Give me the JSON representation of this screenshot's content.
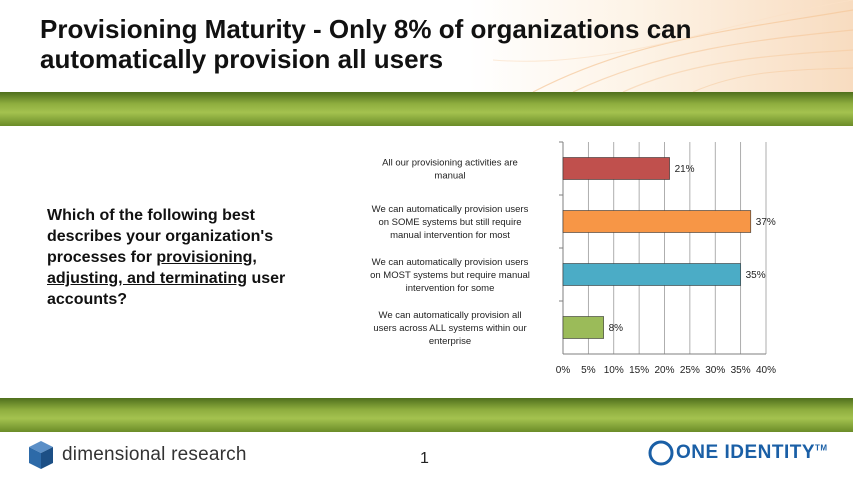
{
  "slide": {
    "title": "Provisioning Maturity - Only 8% of organizations can automatically provision all users",
    "question_parts": [
      "Which of the following  best describes your organization's processes for ",
      "provisioning, adjusting, and terminating",
      " user accounts?"
    ],
    "page_number": "1"
  },
  "footer": {
    "left_brand": "dimensional research",
    "right_brand_one": "ONE",
    "right_brand_identity": "IDENTITY",
    "right_brand_tm": "TM"
  },
  "colors": {
    "band": "#8fae3f",
    "bar_red": "#c0504d",
    "bar_orange": "#f79646",
    "bar_blue": "#4bacc6",
    "bar_green": "#9bbb59",
    "logo_blue": "#1a5fa6"
  },
  "icons": [
    "dimensional-research-cube-icon",
    "one-identity-circle-icon"
  ],
  "chart_data": {
    "type": "bar",
    "orientation": "horizontal",
    "categories": [
      [
        "All our provisioning activities are",
        "manual"
      ],
      [
        "We can automatically provision users",
        "on SOME systems but still require",
        "manual intervention for most"
      ],
      [
        "We can automatically provision users",
        "on MOST systems but require manual",
        "intervention for some"
      ],
      [
        "We can automatically provision all",
        "users across ALL systems within our",
        "enterprise"
      ]
    ],
    "values": [
      21,
      37,
      35,
      8
    ],
    "data_labels": [
      "21%",
      "37%",
      "35%",
      "8%"
    ],
    "colors": [
      "#c0504d",
      "#f79646",
      "#4bacc6",
      "#9bbb59"
    ],
    "x_ticks": [
      "0%",
      "5%",
      "10%",
      "15%",
      "20%",
      "25%",
      "30%",
      "35%",
      "40%"
    ],
    "xlim": [
      0,
      40
    ],
    "grid": true
  }
}
